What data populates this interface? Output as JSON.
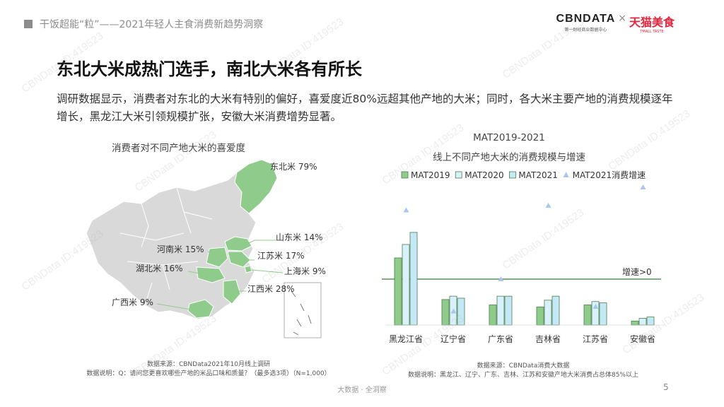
{
  "header": {
    "topbar_text": "干饭超能“粒”——2021年轻人主食消费新趋势洞察",
    "brand_cbn": "CBNDATA",
    "brand_cbn_sub": "第一财经商业数据中心",
    "brand_cross": "×",
    "brand_tmall": "天猫美食",
    "brand_tmall_sub": "TMALL TASTE"
  },
  "headline": "东北大米成热门选手，南北大米各有所长",
  "paragraph": "调研数据显示，消费者对东北的大米有特别的偏好，喜爱度近80%远超其他产地的大米；同时，各大米主要产地的消费规模逐年增长，黑龙江大米引领规模扩张，安徽大米消费增势显著。",
  "map": {
    "title": "消费者对不同产地大米的喜爱度",
    "labels": [
      {
        "id": "dongbei",
        "text": "东北米 79%"
      },
      {
        "id": "shandong",
        "text": "山东米 14%"
      },
      {
        "id": "henan",
        "text": "河南米 15%"
      },
      {
        "id": "jiangsu",
        "text": "江苏米 17%"
      },
      {
        "id": "hubei",
        "text": "湖北米 16%"
      },
      {
        "id": "shanghai",
        "text": "上海米 9%"
      },
      {
        "id": "jiangxi",
        "text": "江西米 28%"
      },
      {
        "id": "guangxi",
        "text": "广西米 9%"
      }
    ],
    "source": "数据来源：CBNData2021年10月线上调研",
    "note": "数据说明：Q：请问您更喜欢哪些产地的米品口味和质量？（最多选3项）（N=1,000）",
    "colors": {
      "highlight": "#8fcc8c",
      "base": "#d9d9d9",
      "border": "#ffffff"
    }
  },
  "chart_data": {
    "type": "bar",
    "title": "MAT2019-2021",
    "subtitle": "线上不同产地大米的消费规模与增速",
    "categories": [
      "黑龙江省",
      "辽宁省",
      "广东省",
      "吉林省",
      "江苏省",
      "安徽省"
    ],
    "series": [
      {
        "name": "MAT2019",
        "values": [
          100,
          38,
          30,
          27,
          30,
          6
        ],
        "color": "#8fcc8c"
      },
      {
        "name": "MAT2020",
        "values": [
          120,
          43,
          43,
          37,
          35,
          10
        ],
        "color": "#d9f1fa"
      },
      {
        "name": "MAT2021",
        "values": [
          138,
          40,
          43,
          43,
          33,
          12
        ],
        "color": "#c5e8f7"
      }
    ],
    "growth": {
      "name": "MAT2021消费增速",
      "values": [
        15,
        -7,
        0,
        16,
        -6,
        20
      ],
      "color": "#a7c7ee"
    },
    "reference_label": "增速>0",
    "legend_position": "top",
    "source": "数据来源：CBNData消费大数据",
    "note": "数据说明：黑龙江、辽宁、广东、吉林、江苏和安徽产地大米消费占总体85%以上"
  },
  "footer": {
    "text": "大数据 · 全洞察",
    "page": "5"
  },
  "watermark": "CBNData ID:419523"
}
